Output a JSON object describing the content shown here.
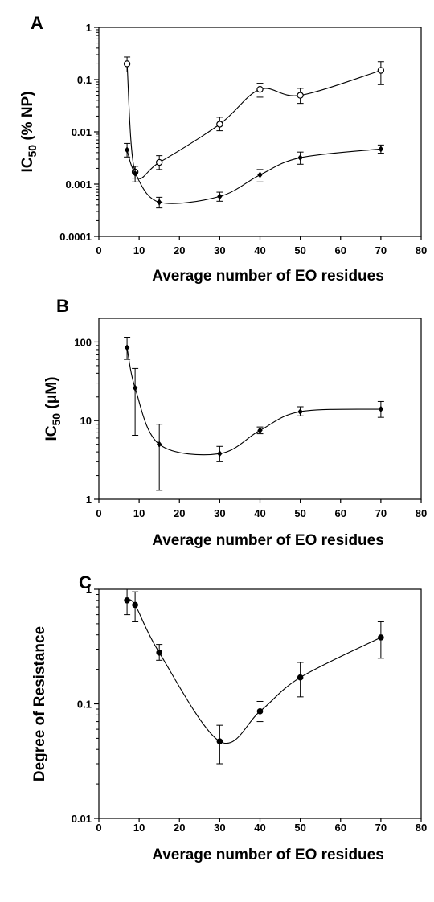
{
  "chart_data": [
    {
      "panel": "A",
      "type": "line",
      "xlabel": "Average number of EO residues",
      "ylabel_main": "IC",
      "ylabel_sub": "50",
      "ylabel_rest": " (% NP)",
      "xlim": [
        0,
        80
      ],
      "ylim": [
        0.0001,
        1
      ],
      "yscale": "log",
      "xticks": [
        0,
        10,
        20,
        30,
        40,
        50,
        60,
        70,
        80
      ],
      "xtick_labels": [
        "0",
        "10",
        "20",
        "30",
        "40",
        "50",
        "60",
        "70",
        "80"
      ],
      "yticks": [
        0.0001,
        0.001,
        0.01,
        0.1,
        1
      ],
      "ytick_labels": [
        "0.0001",
        "0.001",
        "0.01",
        "0.1",
        "1"
      ],
      "series": [
        {
          "marker": "open-circle",
          "x": [
            7,
            9,
            15,
            30,
            40,
            50,
            70
          ],
          "y": [
            0.2,
            0.0017,
            0.0026,
            0.014,
            0.065,
            0.05,
            0.15
          ],
          "err_low": [
            0.14,
            0.0013,
            0.0019,
            0.0105,
            0.046,
            0.035,
            0.08
          ],
          "err_high": [
            0.27,
            0.0022,
            0.0035,
            0.019,
            0.085,
            0.068,
            0.22
          ]
        },
        {
          "marker": "filled-diamond",
          "x": [
            7,
            9,
            15,
            30,
            40,
            50,
            70
          ],
          "y": [
            0.0045,
            0.0016,
            0.00045,
            0.00058,
            0.0015,
            0.0032,
            0.0047
          ],
          "err_low": [
            0.0033,
            0.0011,
            0.00035,
            0.00047,
            0.0011,
            0.0024,
            0.0039
          ],
          "err_high": [
            0.006,
            0.0022,
            0.00056,
            0.0007,
            0.0019,
            0.0041,
            0.0056
          ]
        }
      ]
    },
    {
      "panel": "B",
      "type": "line",
      "xlabel": "Average number of EO residues",
      "ylabel_main": "IC",
      "ylabel_sub": "50",
      "ylabel_rest": " (μM)",
      "xlim": [
        0,
        80
      ],
      "ylim": [
        1,
        200
      ],
      "yscale": "log",
      "xticks": [
        0,
        10,
        20,
        30,
        40,
        50,
        60,
        70,
        80
      ],
      "xtick_labels": [
        "0",
        "10",
        "20",
        "30",
        "40",
        "50",
        "60",
        "70",
        "80"
      ],
      "yticks": [
        1,
        10,
        100
      ],
      "ytick_labels": [
        "1",
        "10",
        "100"
      ],
      "series": [
        {
          "marker": "filled-diamond",
          "x": [
            7,
            9,
            15,
            30,
            40,
            50,
            70
          ],
          "y": [
            85,
            26,
            5,
            3.8,
            7.5,
            13,
            14
          ],
          "err_low": [
            60,
            6.5,
            1.3,
            3,
            6.8,
            11.5,
            11
          ],
          "err_high": [
            115,
            46,
            9,
            4.7,
            8.3,
            15,
            17.5
          ]
        }
      ]
    },
    {
      "panel": "C",
      "type": "line",
      "xlabel": "Average number of EO residues",
      "ylabel_main": "Degree of Resistance",
      "ylabel_sub": "",
      "ylabel_rest": "",
      "xlim": [
        0,
        80
      ],
      "ylim": [
        0.01,
        1
      ],
      "yscale": "log",
      "xticks": [
        0,
        10,
        20,
        30,
        40,
        50,
        60,
        70,
        80
      ],
      "xtick_labels": [
        "0",
        "10",
        "20",
        "30",
        "40",
        "50",
        "60",
        "70",
        "80"
      ],
      "yticks": [
        0.01,
        0.1,
        1
      ],
      "ytick_labels": [
        "0.01",
        "0.1",
        "1"
      ],
      "series": [
        {
          "marker": "filled-circle",
          "x": [
            7,
            9,
            15,
            30,
            40,
            50,
            70
          ],
          "y": [
            0.8,
            0.73,
            0.28,
            0.047,
            0.086,
            0.17,
            0.38
          ],
          "err_low": [
            0.6,
            0.52,
            0.24,
            0.03,
            0.07,
            0.115,
            0.25
          ],
          "err_high": [
            1.0,
            0.95,
            0.33,
            0.065,
            0.105,
            0.23,
            0.52
          ]
        }
      ]
    }
  ]
}
